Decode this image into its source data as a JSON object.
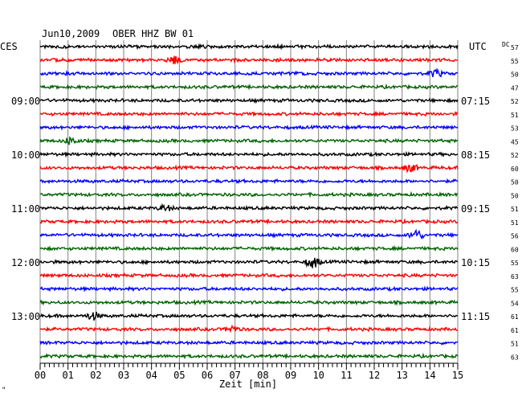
{
  "header": {
    "date": "Jun10,2009",
    "station": "OBER HHZ BW 01"
  },
  "left_label": "CES",
  "right_label": "UTC",
  "dc_label": "DC",
  "xlabel": "Zeit [min]",
  "footer_mark": "\"",
  "colors": {
    "background": "#ffffff",
    "grid": "#808080",
    "trace_cycle": [
      "#000000",
      "#ff0000",
      "#0000ff",
      "#006400"
    ]
  },
  "chart_data": {
    "type": "line",
    "title": "Jun10,2009 OBER HHZ BW 01",
    "xlabel": "Zeit [min]",
    "xlim": [
      0,
      15
    ],
    "x_ticks": [
      "00",
      "01",
      "02",
      "03",
      "04",
      "05",
      "06",
      "07",
      "08",
      "09",
      "10",
      "11",
      "12",
      "13",
      "14",
      "15"
    ],
    "trace_count": 24,
    "trace_interval_minutes": 15,
    "left_time_labels": [
      {
        "trace": 4,
        "label": "09:00"
      },
      {
        "trace": 8,
        "label": "10:00"
      },
      {
        "trace": 12,
        "label": "11:00"
      },
      {
        "trace": 16,
        "label": "12:00"
      },
      {
        "trace": 20,
        "label": "13:00"
      }
    ],
    "right_time_labels": [
      {
        "trace": 4,
        "label": "07:15"
      },
      {
        "trace": 8,
        "label": "08:15"
      },
      {
        "trace": 12,
        "label": "09:15"
      },
      {
        "trace": 16,
        "label": "10:15"
      },
      {
        "trace": 20,
        "label": "11:15"
      }
    ],
    "dc_values": [
      57,
      55,
      50,
      47,
      52,
      51,
      53,
      45,
      52,
      60,
      50,
      50,
      51,
      51,
      56,
      60,
      55,
      63,
      55,
      54,
      61,
      61,
      51,
      63
    ],
    "events": [
      {
        "trace": 1,
        "minute": 4.8,
        "amplitude": 1.8
      },
      {
        "trace": 2,
        "minute": 14.2,
        "amplitude": 1.4
      },
      {
        "trace": 7,
        "minute": 1.1,
        "amplitude": 1.5
      },
      {
        "trace": 9,
        "minute": 13.3,
        "amplitude": 1.6
      },
      {
        "trace": 12,
        "minute": 4.5,
        "amplitude": 1.2
      },
      {
        "trace": 14,
        "minute": 13.5,
        "amplitude": 2.2
      },
      {
        "trace": 16,
        "minute": 9.8,
        "amplitude": 2.4
      },
      {
        "trace": 20,
        "minute": 1.9,
        "amplitude": 1.6
      },
      {
        "trace": 21,
        "minute": 6.9,
        "amplitude": 1.2
      }
    ]
  }
}
